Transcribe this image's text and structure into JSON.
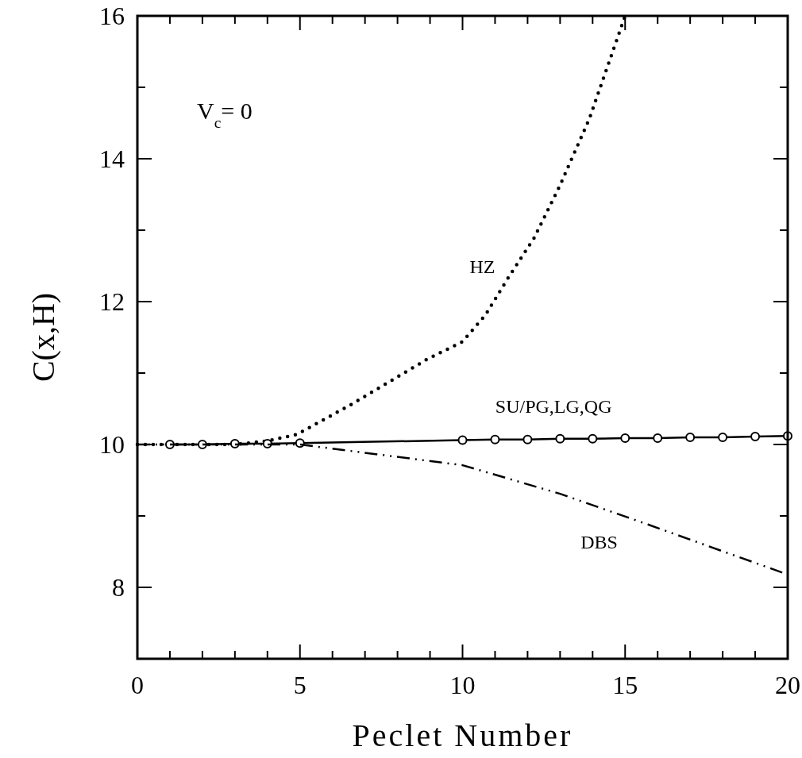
{
  "chart_data": {
    "type": "line",
    "xlabel": "Peclet Number",
    "ylabel": "C(x,H)",
    "annotations": [
      "V$_{c}$= 0"
    ],
    "xlim": [
      0,
      20
    ],
    "ylim": [
      7,
      16
    ],
    "xticks": [
      0,
      {
        "value": 1,
        "label": null
      },
      {
        "value": 2,
        "label": null
      },
      {
        "value": 3,
        "label": null
      },
      {
        "value": 4,
        "label": null
      },
      5,
      {
        "value": 6,
        "label": null
      },
      {
        "value": 7,
        "label": null
      },
      {
        "value": 8,
        "label": null
      },
      {
        "value": 9,
        "label": null
      },
      10,
      {
        "value": 11,
        "label": null
      },
      {
        "value": 12,
        "label": null
      },
      {
        "value": 13,
        "label": null
      },
      {
        "value": 14,
        "label": null
      },
      15,
      {
        "value": 16,
        "label": null
      },
      {
        "value": 17,
        "label": null
      },
      {
        "value": 18,
        "label": null
      },
      {
        "value": 19,
        "label": null
      },
      20
    ],
    "yticks": [
      {
        "value": 7,
        "label": null
      },
      8,
      {
        "value": 9,
        "label": null
      },
      10,
      {
        "value": 11,
        "label": null
      },
      12,
      {
        "value": 13,
        "label": null
      },
      14,
      {
        "value": 15,
        "label": null
      },
      16
    ],
    "grid": false,
    "series": [
      {
        "name": "HZ",
        "color": "#000000",
        "line_style": "dotted",
        "marker": "none",
        "x": [
          0,
          1,
          2,
          3,
          4,
          4.9,
          6.5,
          8.9,
          10,
          10.7,
          11.4,
          12.2,
          13,
          13.9,
          15
        ],
        "values": [
          10,
          10,
          10,
          10,
          10.05,
          10.14,
          10.54,
          11.19,
          11.44,
          11.81,
          12.33,
          12.89,
          13.63,
          14.56,
          16
        ]
      },
      {
        "name": "SU/PG,LG,QG",
        "color": "#000000",
        "line_style": "solid",
        "marker": "circle",
        "x": [
          1,
          2,
          3,
          4,
          5,
          10,
          11,
          12,
          13,
          14,
          15,
          16,
          17,
          18,
          19,
          20
        ],
        "values": [
          10,
          10,
          10.01,
          10.01,
          10.02,
          10.06,
          10.07,
          10.07,
          10.08,
          10.08,
          10.09,
          10.09,
          10.1,
          10.1,
          10.11,
          10.12
        ]
      },
      {
        "name": "DBS",
        "color": "#000000",
        "line_style": "dashed",
        "marker": "none",
        "x": [
          0,
          5,
          10,
          13,
          15.7,
          20
        ],
        "values": [
          10,
          10,
          9.71,
          9.31,
          8.88,
          8.18
        ]
      }
    ]
  }
}
